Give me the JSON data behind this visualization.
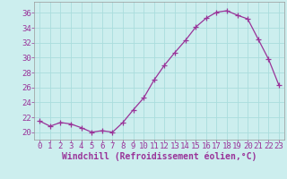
{
  "x": [
    0,
    1,
    2,
    3,
    4,
    5,
    6,
    7,
    8,
    9,
    10,
    11,
    12,
    13,
    14,
    15,
    16,
    17,
    18,
    19,
    20,
    21,
    22,
    23
  ],
  "y": [
    21.5,
    20.8,
    21.3,
    21.1,
    20.6,
    20.0,
    20.2,
    20.0,
    21.3,
    23.0,
    24.6,
    27.0,
    29.0,
    30.7,
    32.3,
    34.1,
    35.3,
    36.1,
    36.3,
    35.7,
    35.2,
    32.5,
    29.8,
    26.3
  ],
  "line_color": "#993399",
  "marker": "+",
  "marker_size": 4,
  "xlabel": "Windchill (Refroidissement éolien,°C)",
  "xlim": [
    -0.5,
    23.5
  ],
  "ylim": [
    19.0,
    37.5
  ],
  "yticks": [
    20,
    22,
    24,
    26,
    28,
    30,
    32,
    34,
    36
  ],
  "xticks": [
    0,
    1,
    2,
    3,
    4,
    5,
    6,
    7,
    8,
    9,
    10,
    11,
    12,
    13,
    14,
    15,
    16,
    17,
    18,
    19,
    20,
    21,
    22,
    23
  ],
  "grid_color": "#aadddd",
  "bg_color": "#cceeee",
  "tick_label_color": "#993399",
  "axis_color": "#999999",
  "xlabel_color": "#993399",
  "xlabel_fontsize": 7,
  "tick_fontsize": 6.5
}
